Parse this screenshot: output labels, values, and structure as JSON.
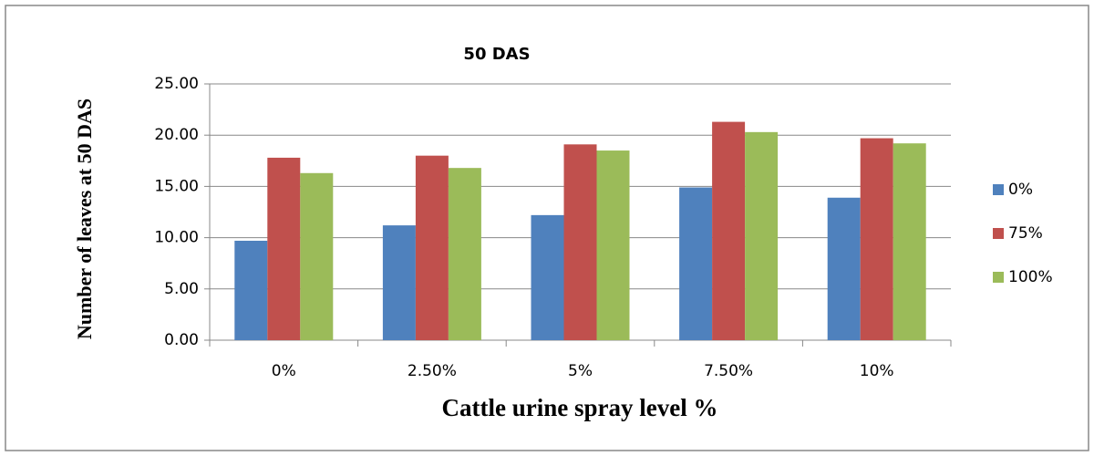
{
  "chart_data": {
    "type": "bar",
    "title": "50 DAS",
    "x_label": "Cattle urine spray level %",
    "y_label": "Number of leaves at 50 DAS",
    "categories": [
      "0%",
      "2.50%",
      "5%",
      "7.50%",
      "10%"
    ],
    "series": [
      {
        "name": "0%",
        "color": "#4f81bd",
        "values": [
          9.7,
          11.2,
          12.2,
          14.9,
          13.9
        ]
      },
      {
        "name": "75%",
        "color": "#c0504d",
        "values": [
          17.8,
          18.0,
          19.1,
          21.3,
          19.7
        ]
      },
      {
        "name": "100%",
        "color": "#9bbb59",
        "values": [
          16.3,
          16.8,
          18.5,
          20.3,
          19.2
        ]
      }
    ],
    "ylim": [
      0,
      25
    ],
    "yticks": [
      {
        "value": 0,
        "label": "0.00"
      },
      {
        "value": 5,
        "label": "5.00"
      },
      {
        "value": 10,
        "label": "10.00"
      },
      {
        "value": 15,
        "label": "15.00"
      },
      {
        "value": 20,
        "label": "20.00"
      },
      {
        "value": 25,
        "label": "25.00"
      }
    ],
    "grid": true,
    "legend": "right"
  }
}
